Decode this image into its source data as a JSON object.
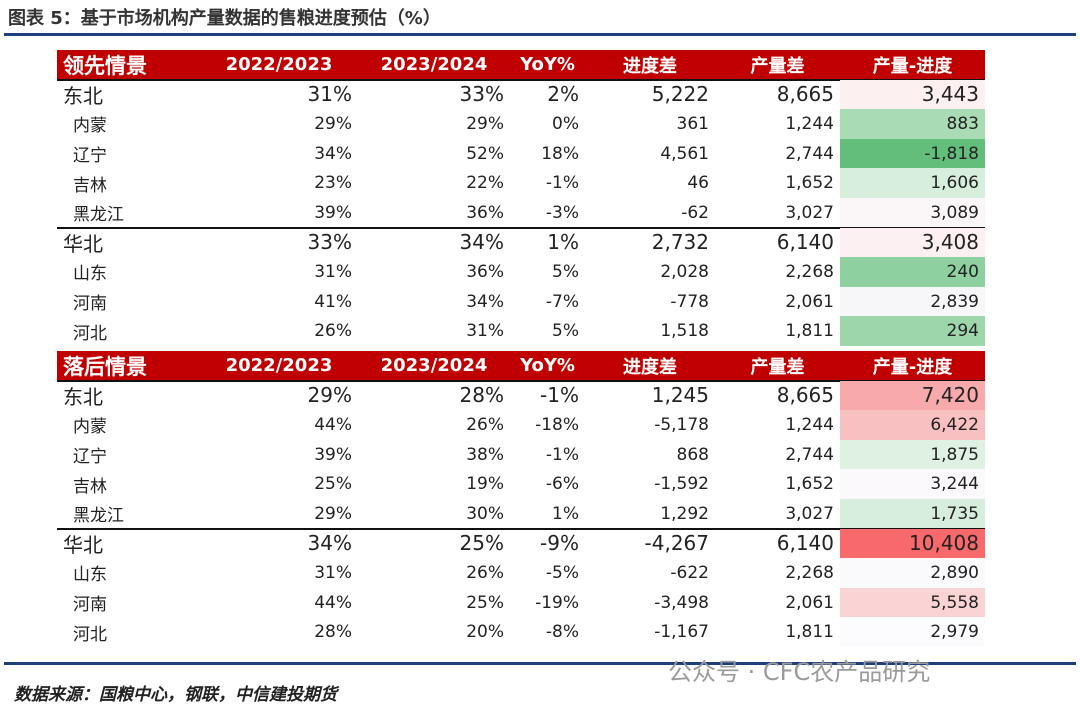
{
  "header": {
    "title": "图表 5：基于市场机构产量数据的售粮进度预估（%）"
  },
  "sections": [
    {
      "header": [
        "领先情景",
        "2022/2023",
        "2023/2024",
        "YoY%",
        "进度差",
        "产量差",
        "产量-进度"
      ],
      "rows": [
        [
          "东北",
          "31%",
          "33%",
          "2%",
          "5,222",
          "8,665",
          "3,443"
        ],
        [
          "内蒙",
          "29%",
          "29%",
          "0%",
          "361",
          "1,244",
          "883"
        ],
        [
          "辽宁",
          "34%",
          "52%",
          "18%",
          "4,561",
          "2,744",
          "-1,818"
        ],
        [
          "吉林",
          "23%",
          "22%",
          "-1%",
          "46",
          "1,652",
          "1,606"
        ],
        [
          "黑龙江",
          "39%",
          "36%",
          "-3%",
          "-62",
          "3,027",
          "3,089"
        ],
        [
          "华北",
          "33%",
          "34%",
          "1%",
          "2,732",
          "6,140",
          "3,408"
        ],
        [
          "山东",
          "31%",
          "36%",
          "5%",
          "2,028",
          "2,268",
          "240"
        ],
        [
          "河南",
          "41%",
          "34%",
          "-7%",
          "-778",
          "2,061",
          "2,839"
        ],
        [
          "河北",
          "26%",
          "31%",
          "5%",
          "1,518",
          "1,811",
          "294"
        ]
      ]
    },
    {
      "header": [
        "落后情景",
        "2022/2023",
        "2023/2024",
        "YoY%",
        "进度差",
        "产量差",
        "产量-进度"
      ],
      "rows": [
        [
          "东北",
          "29%",
          "28%",
          "-1%",
          "1,245",
          "8,665",
          "7,420"
        ],
        [
          "内蒙",
          "44%",
          "26%",
          "-18%",
          "-5,178",
          "1,244",
          "6,422"
        ],
        [
          "辽宁",
          "39%",
          "38%",
          "-1%",
          "868",
          "2,744",
          "1,875"
        ],
        [
          "吉林",
          "25%",
          "19%",
          "-6%",
          "-1,592",
          "1,652",
          "3,244"
        ],
        [
          "黑龙江",
          "29%",
          "30%",
          "1%",
          "1,292",
          "3,027",
          "1,735"
        ],
        [
          "华北",
          "34%",
          "25%",
          "-9%",
          "-4,267",
          "6,140",
          "10,408"
        ],
        [
          "山东",
          "31%",
          "26%",
          "-5%",
          "-622",
          "2,268",
          "2,890"
        ],
        [
          "河南",
          "44%",
          "25%",
          "-19%",
          "-3,498",
          "2,061",
          "5,558"
        ],
        [
          "河北",
          "28%",
          "20%",
          "-8%",
          "-1,167",
          "1,811",
          "2,979"
        ]
      ]
    }
  ],
  "footer": {
    "source": "数据来源：国粮中心，钢联，中信建投期货",
    "watermark": "公众号 · CFC农产品研究"
  }
}
